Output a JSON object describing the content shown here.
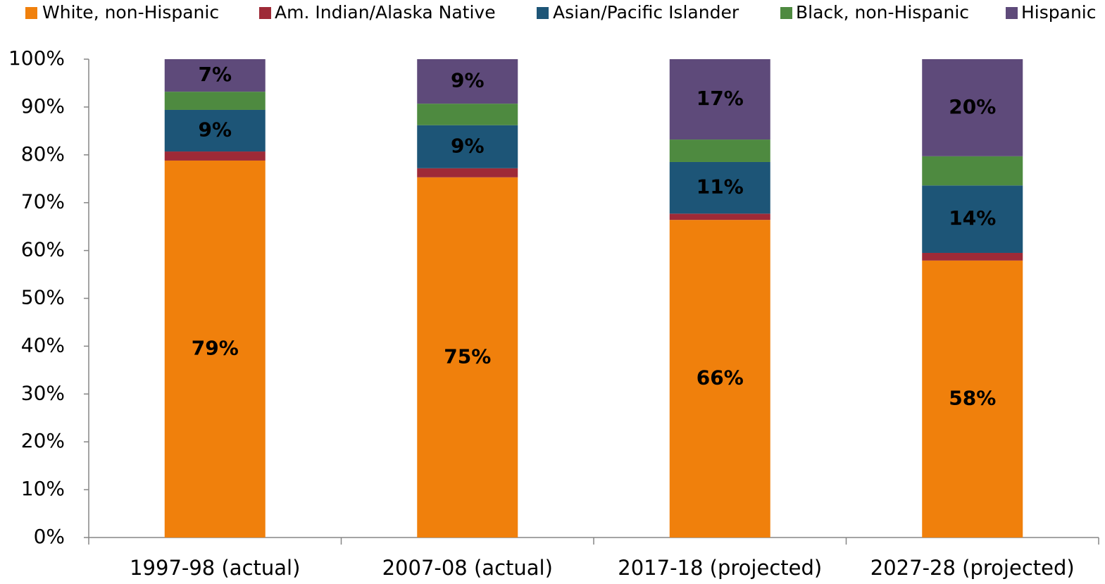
{
  "chart_data": {
    "type": "stacked_bar",
    "categories": [
      "1997-98 (actual)",
      "2007-08 (actual)",
      "2017-18 (projected)",
      "2027-28 (projected)"
    ],
    "series": [
      {
        "name": "White, non-Hispanic",
        "color": "#f0800c",
        "values": [
          78.8,
          75.3,
          66.4,
          57.9
        ],
        "value_labels": [
          "79%",
          "75%",
          "66%",
          "58%"
        ]
      },
      {
        "name": "Am. Indian/Alaska Native",
        "color": "#9e2a37",
        "values": [
          1.9,
          1.9,
          1.3,
          1.6
        ]
      },
      {
        "name": "Asian/Pacific Islander",
        "color": "#1d5577",
        "values": [
          8.7,
          9.0,
          10.8,
          14.1
        ],
        "value_labels": [
          "9%",
          "9%",
          "11%",
          "14%"
        ]
      },
      {
        "name": "Black, non-Hispanic",
        "color": "#4e8a40",
        "values": [
          3.8,
          4.5,
          4.7,
          6.1
        ]
      },
      {
        "name": "Hispanic",
        "color": "#5e4a7a",
        "values": [
          6.8,
          9.3,
          16.8,
          20.3
        ],
        "value_labels": [
          "7%",
          "9%",
          "17%",
          "20%"
        ]
      }
    ],
    "ylim": [
      0,
      100
    ],
    "yticks": [
      {
        "value": 0,
        "label": "0%"
      },
      {
        "value": 10,
        "label": "10%"
      },
      {
        "value": 20,
        "label": "20%"
      },
      {
        "value": 30,
        "label": "30%"
      },
      {
        "value": 40,
        "label": "40%"
      },
      {
        "value": 50,
        "label": "50%"
      },
      {
        "value": 60,
        "label": "60%"
      },
      {
        "value": 70,
        "label": "70%"
      },
      {
        "value": 80,
        "label": "80%"
      },
      {
        "value": 90,
        "label": "90%"
      },
      {
        "value": 100,
        "label": "100%"
      }
    ],
    "legend": "top"
  }
}
